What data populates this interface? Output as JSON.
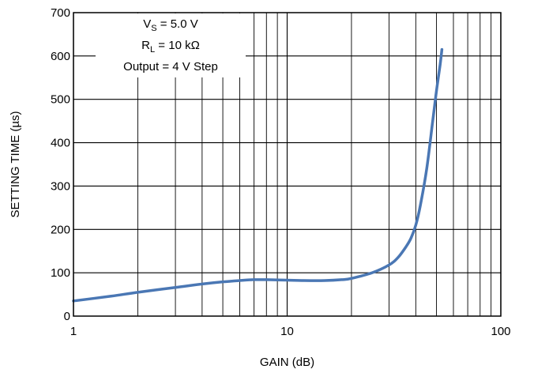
{
  "chart_data": {
    "type": "line",
    "title": "",
    "xlabel": "GAIN (dB)",
    "ylabel": "SETTING TIME (µs)",
    "x_scale": "log",
    "xlim": [
      1,
      100
    ],
    "ylim": [
      0,
      700
    ],
    "x_ticks": [
      1,
      10,
      100
    ],
    "x_tick_labels": [
      "1",
      "10",
      "100"
    ],
    "y_ticks": [
      0,
      100,
      200,
      300,
      400,
      500,
      600,
      700
    ],
    "y_tick_labels": [
      "0",
      "100",
      "200",
      "300",
      "400",
      "500",
      "600",
      "700"
    ],
    "grid": true,
    "legend": "none",
    "line_color": "#4a77b4",
    "annotation": {
      "vs_main": "V",
      "vs_sub": "S",
      "vs_value": " = 5.0 V",
      "rl_main": "R",
      "rl_sub": "L",
      "rl_value": " = 10 kΩ",
      "output": "Output = 4 V Step"
    },
    "series": [
      {
        "x": [
          1,
          1.5,
          2,
          3,
          4,
          5,
          6,
          7,
          8,
          10,
          12,
          15,
          18,
          20,
          25,
          30,
          33,
          36,
          38,
          40,
          42,
          45,
          48,
          50,
          52,
          53
        ],
        "y": [
          35,
          46,
          55,
          66,
          74,
          79,
          82,
          84,
          84,
          83,
          82,
          82,
          84,
          87,
          100,
          118,
          135,
          160,
          180,
          210,
          255,
          340,
          450,
          520,
          580,
          615
        ]
      }
    ]
  }
}
